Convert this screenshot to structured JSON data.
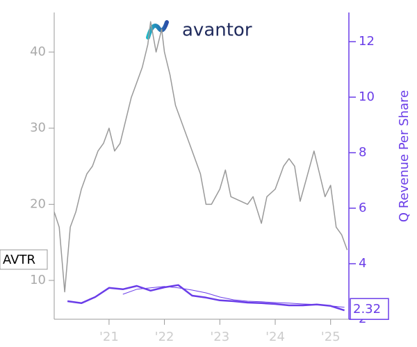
{
  "chart_data": {
    "type": "line",
    "logo": "avantor",
    "y2label": "Q Revenue Per Share",
    "xlim": [
      2020.01,
      2025.33
    ],
    "xticks": [
      {
        "value": 2021,
        "label": "'21"
      },
      {
        "value": 2022,
        "label": "'22"
      },
      {
        "value": 2023,
        "label": "'23"
      },
      {
        "value": 2024,
        "label": "'24"
      },
      {
        "value": 2025,
        "label": "'25"
      }
    ],
    "ylim": [
      4.9,
      45.2
    ],
    "yticks": [
      10,
      20,
      30,
      40
    ],
    "y2lim": [
      2,
      13.05
    ],
    "y2ticks": [
      2,
      4,
      6,
      8,
      10,
      12
    ],
    "series": [
      {
        "name": "AVTR",
        "color": "#999999",
        "axis": "y",
        "x": [
          2020.01,
          2020.1,
          2020.2,
          2020.3,
          2020.4,
          2020.5,
          2020.6,
          2020.7,
          2020.8,
          2020.9,
          2021.0,
          2021.1,
          2021.2,
          2021.3,
          2021.4,
          2021.5,
          2021.6,
          2021.7,
          2021.75,
          2021.85,
          2021.95,
          2022.0,
          2022.1,
          2022.2,
          2022.35,
          2022.5,
          2022.65,
          2022.75,
          2022.85,
          2023.0,
          2023.1,
          2023.2,
          2023.35,
          2023.5,
          2023.6,
          2023.75,
          2023.85,
          2024.0,
          2024.15,
          2024.25,
          2024.35,
          2024.45,
          2024.55,
          2024.7,
          2024.8,
          2024.9,
          2025.0,
          2025.1,
          2025.2,
          2025.3
        ],
        "values": [
          19,
          17,
          8.5,
          17,
          19,
          22,
          24,
          25,
          27,
          28,
          30,
          27,
          28,
          31,
          34,
          36,
          38,
          41,
          44,
          40,
          43,
          40,
          37,
          33,
          30,
          27,
          24,
          20,
          20,
          22,
          24.5,
          21,
          20.5,
          20,
          21,
          17.5,
          21,
          22,
          25,
          26,
          25,
          20.4,
          23,
          27,
          24,
          21,
          22.5,
          17,
          16,
          14
        ]
      },
      {
        "name": "Q Revenue Per Share",
        "color": "#6a3de8",
        "axis": "y2",
        "x": [
          2020.25,
          2020.5,
          2020.75,
          2021.0,
          2021.25,
          2021.5,
          2021.75,
          2022.0,
          2022.25,
          2022.5,
          2022.75,
          2023.0,
          2023.25,
          2023.5,
          2023.75,
          2024.0,
          2024.25,
          2024.5,
          2024.75,
          2025.0,
          2025.25
        ],
        "values": [
          2.65,
          2.58,
          2.8,
          3.13,
          3.08,
          3.2,
          3.03,
          3.15,
          3.23,
          2.85,
          2.78,
          2.68,
          2.65,
          2.6,
          2.58,
          2.55,
          2.5,
          2.5,
          2.53,
          2.48,
          2.32
        ]
      },
      {
        "color": "#6a3de8",
        "axis": "y2",
        "x": [
          2021.25,
          2021.5,
          2021.75,
          2022.0,
          2022.25,
          2022.5,
          2022.75,
          2023.0,
          2023.25,
          2023.5,
          2023.75,
          2024.0,
          2024.25,
          2024.5,
          2024.75,
          2025.0,
          2025.25
        ],
        "values": [
          2.9,
          3.08,
          3.13,
          3.18,
          3.13,
          3.05,
          2.95,
          2.8,
          2.7,
          2.65,
          2.63,
          2.6,
          2.58,
          2.55,
          2.53,
          2.48,
          2.43
        ]
      }
    ]
  }
}
